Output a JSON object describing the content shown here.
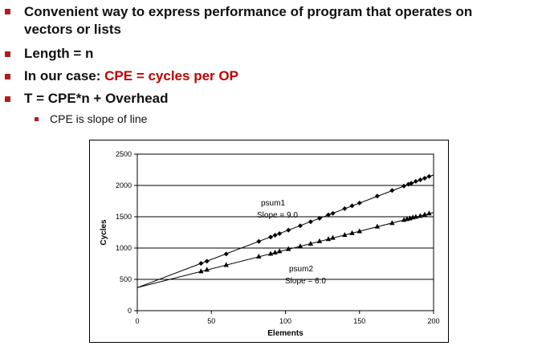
{
  "bullets": [
    {
      "text_line1": "Convenient way to express performance of program that operates on",
      "text_line2": "vectors or lists"
    },
    {
      "text": "Length = n"
    },
    {
      "prefix": "In our case: ",
      "highlight": "CPE = cycles per OP"
    },
    {
      "text": "T = CPE*n + Overhead"
    }
  ],
  "sub_bullet": "CPE is slope of line",
  "colors": {
    "bullet": "#b31b1b",
    "highlight": "#c00000"
  },
  "chart_data": {
    "type": "scatter",
    "xlabel": "Elements",
    "ylabel": "Cycles",
    "xlim": [
      0,
      200
    ],
    "ylim": [
      0,
      2500
    ],
    "xticks": [
      0,
      50,
      100,
      150,
      200
    ],
    "yticks": [
      0,
      500,
      1000,
      1500,
      2000,
      2500
    ],
    "grid": "horizontal",
    "series": [
      {
        "name": "psum1",
        "marker": "diamond",
        "slope_label": "Slope = 9.0",
        "x": [
          43,
          47,
          60,
          82,
          90,
          93,
          96,
          102,
          110,
          117,
          123,
          129,
          132,
          140,
          145,
          150,
          162,
          172,
          180,
          183,
          185,
          188,
          191,
          194,
          197
        ],
        "y": [
          755,
          790,
          905,
          1105,
          1175,
          1205,
          1230,
          1285,
          1355,
          1420,
          1475,
          1530,
          1555,
          1630,
          1675,
          1720,
          1830,
          1920,
          1990,
          2020,
          2035,
          2065,
          2090,
          2115,
          2145
        ]
      },
      {
        "name": "psum2",
        "marker": "triangle",
        "slope_label": "Slope = 6.0",
        "x": [
          43,
          47,
          60,
          82,
          90,
          93,
          96,
          102,
          110,
          117,
          123,
          129,
          132,
          140,
          145,
          150,
          162,
          172,
          180,
          182,
          184,
          186,
          188,
          191,
          194,
          197
        ],
        "y": [
          630,
          655,
          730,
          865,
          910,
          930,
          950,
          985,
          1030,
          1070,
          1110,
          1145,
          1165,
          1210,
          1240,
          1270,
          1345,
          1400,
          1450,
          1465,
          1475,
          1490,
          1500,
          1515,
          1535,
          1555
        ]
      }
    ],
    "fit_lines": [
      {
        "series": "psum1",
        "intercept": 368,
        "slope": 9.0
      },
      {
        "series": "psum2",
        "intercept": 368,
        "slope": 6.0
      }
    ]
  }
}
